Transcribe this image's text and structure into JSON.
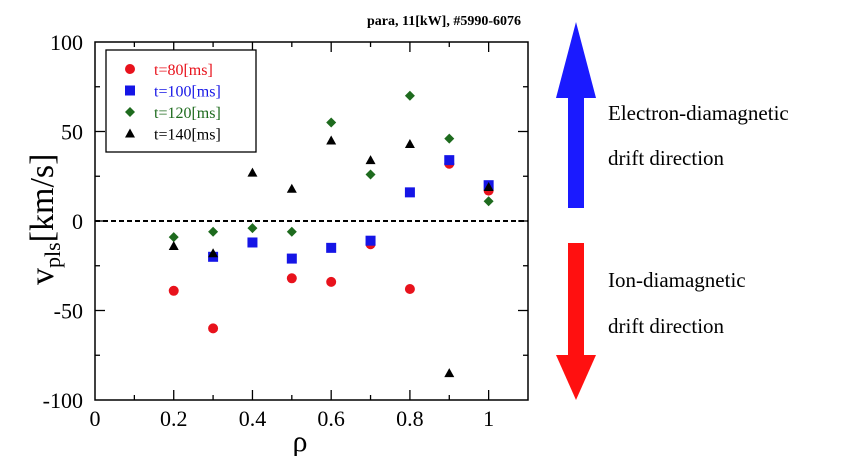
{
  "chart_data": {
    "type": "scatter",
    "title": "para, 11[kW], #5990-6076",
    "xlabel": "ρ",
    "ylabel": {
      "main": "v",
      "sub": "pls",
      "unit": "[km/s]"
    },
    "xlim": [
      0,
      1.1
    ],
    "ylim": [
      -100,
      100
    ],
    "xticks": [
      "0",
      "0.2",
      "0.4",
      "0.6",
      "0.8",
      "1"
    ],
    "yticks": [
      "100",
      "50",
      "0",
      "-50",
      "-100"
    ],
    "zero_line": "dashed",
    "legend": "top-left",
    "series": [
      {
        "name": "t=80[ms]",
        "color": "#e8121c",
        "marker": "circle",
        "points": [
          [
            0.2,
            -39
          ],
          [
            0.3,
            -60
          ],
          [
            0.5,
            -32
          ],
          [
            0.6,
            -34
          ],
          [
            0.7,
            -13
          ],
          [
            0.8,
            -38
          ],
          [
            0.9,
            32
          ],
          [
            1.0,
            17
          ]
        ]
      },
      {
        "name": "t=100[ms]",
        "color": "#1515e6",
        "marker": "square",
        "points": [
          [
            0.3,
            -20
          ],
          [
            0.4,
            -12
          ],
          [
            0.5,
            -21
          ],
          [
            0.6,
            -15
          ],
          [
            0.7,
            -11
          ],
          [
            0.8,
            16
          ],
          [
            0.9,
            34
          ],
          [
            1.0,
            20
          ]
        ]
      },
      {
        "name": "t=120[ms]",
        "color": "#1e6b1e",
        "marker": "diamond",
        "points": [
          [
            0.2,
            -9
          ],
          [
            0.3,
            -6
          ],
          [
            0.4,
            -4
          ],
          [
            0.5,
            -6
          ],
          [
            0.6,
            55
          ],
          [
            0.7,
            26
          ],
          [
            0.8,
            70
          ],
          [
            0.9,
            46
          ],
          [
            1.0,
            11
          ]
        ]
      },
      {
        "name": "t=140[ms]",
        "color": "#000000",
        "marker": "triangle",
        "points": [
          [
            0.2,
            -14
          ],
          [
            0.3,
            -18
          ],
          [
            0.4,
            27
          ],
          [
            0.5,
            18
          ],
          [
            0.6,
            45
          ],
          [
            0.7,
            34
          ],
          [
            0.8,
            43
          ],
          [
            0.9,
            -85
          ],
          [
            1.0,
            19
          ]
        ]
      }
    ]
  },
  "annotations": {
    "electron": {
      "line1": "Electron-diamagnetic",
      "line2": "drift direction",
      "color": "#1a1aff"
    },
    "ion": {
      "line1": "Ion-diamagnetic",
      "line2": "drift direction",
      "color": "#ff1010"
    }
  }
}
